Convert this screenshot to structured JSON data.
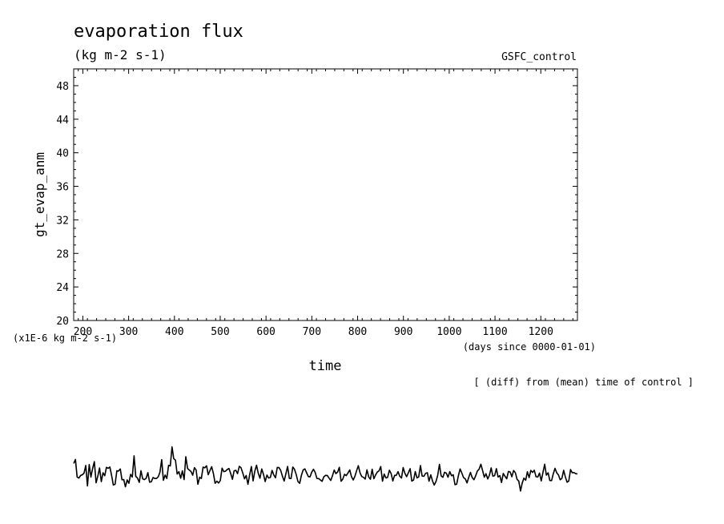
{
  "chart_data": {
    "type": "line",
    "title": "evaporation flux",
    "units": "(kg m-2 s-1)",
    "case_label": "GSFC_control",
    "ylabel": "gt_evap_anm",
    "yscale_note": "(x1E-6 kg m-2 s-1)",
    "xlabel": "time",
    "xunits": "(days since 0000-01-01)",
    "diff_note": "[ (diff) from (mean) time of control ]",
    "xlim": [
      180,
      1280
    ],
    "ylim": [
      20,
      50
    ],
    "xticks": [
      200,
      300,
      400,
      500,
      600,
      700,
      800,
      900,
      1000,
      1100,
      1200
    ],
    "yticks": [
      20,
      24,
      28,
      32,
      36,
      40,
      44,
      48
    ],
    "grid": false,
    "series": [
      {
        "color": "#000000",
        "x_start": 180,
        "x_end": 1280,
        "values": [
          2.96,
          3.42,
          1.34,
          1.21,
          1.51,
          1.61,
          1.79,
          2.72,
          0.27,
          2.82,
          1.33,
          2.38,
          3.17,
          0.64,
          1.47,
          2.41,
          0.79,
          1.84,
          1.49,
          2.49,
          2.37,
          2.53,
          1.49,
          0.39,
          0.47,
          2.08,
          2.05,
          2.3,
          1.01,
          1.03,
          0.17,
          0.99,
          0.59,
          1.66,
          1.33,
          3.86,
          1.42,
          1.21,
          0.69,
          2.08,
          1.11,
          1.03,
          1.19,
          1.86,
          0.72,
          0.76,
          1.28,
          1.16,
          1.16,
          1.36,
          1.9,
          3.4,
          0.94,
          1.57,
          1.16,
          2.73,
          2.66,
          4.92,
          3.53,
          3.35,
          1.68,
          1.97,
          1.2,
          2.07,
          1.03,
          3.76,
          2.35,
          2.17,
          2.0,
          1.55,
          2.45,
          2.16,
          0.47,
          1.31,
          1.16,
          2.52,
          2.43,
          2.68,
          1.61,
          2.11,
          2.56,
          1.73,
          0.59,
          0.84,
          0.61,
          0.92,
          2.39,
          1.98,
          2.03,
          2.23,
          2.35,
          1.76,
          1.06,
          2.08,
          2.13,
          1.73,
          2.61,
          2.45,
          1.83,
          1.12,
          1.52,
          0.46,
          1.59,
          2.58,
          0.87,
          2.05,
          2.74,
          1.77,
          1.19,
          2.3,
          1.65,
          0.79,
          1.57,
          1.22,
          1.28,
          2.12,
          1.58,
          1.25,
          2.48,
          2.46,
          2.11,
          1.45,
          0.85,
          1.74,
          2.59,
          1.17,
          1.16,
          2.53,
          2.26,
          1.62,
          0.81,
          0.59,
          1.52,
          2.17,
          2.31,
          1.85,
          1.39,
          1.35,
          1.92,
          2.26,
          1.87,
          1.16,
          1.15,
          0.99,
          0.82,
          1.36,
          1.53,
          1.52,
          1.21,
          0.93,
          1.48,
          2.16,
          1.74,
          1.93,
          2.49,
          0.83,
          1.08,
          1.66,
          1.5,
          1.82,
          2.18,
          1.4,
          0.99,
          1.41,
          2.1,
          2.69,
          1.82,
          1.4,
          1.29,
          1.09,
          2.19,
          1.34,
          1.06,
          2.26,
          1.13,
          1.59,
          1.92,
          2.08,
          2.58,
          0.83,
          1.68,
          1.22,
          1.3,
          2.14,
          1.74,
          0.86,
          1.53,
          1.53,
          1.97,
          1.44,
          1.22,
          2.46,
          1.77,
          1.38,
          1.84,
          2.33,
          0.84,
          0.98,
          1.98,
          1.23,
          1.35,
          2.71,
          1.45,
          1.42,
          1.78,
          1.85,
          0.83,
          1.6,
          0.85,
          0.38,
          0.81,
          1.52,
          2.85,
          1.47,
          1.3,
          1.9,
          1.79,
          1.3,
          1.98,
          1.48,
          1.61,
          0.42,
          0.47,
          1.51,
          2.3,
          1.8,
          1.27,
          1.11,
          0.63,
          1.29,
          1.89,
          1.27,
          1.01,
          1.48,
          2.06,
          2.27,
          2.86,
          2.13,
          1.31,
          1.73,
          1.1,
          1.55,
          2.42,
          1.43,
          1.5,
          2.33,
          1.33,
          1.5,
          0.68,
          1.76,
          1.44,
          1.12,
          2.0,
          1.93,
          1.37,
          2.11,
          1.84,
          1.06,
          0.83,
          -0.33,
          0.63,
          1.21,
          0.95,
          1.96,
          1.26,
          2.12,
          1.89,
          2.14,
          1.37,
          1.33,
          1.81,
          0.87,
          1.87,
          2.86,
          1.56,
          1.84,
          0.92,
          0.91,
          1.7,
          2.37,
          1.83,
          1.58,
          1.01,
          1.18,
          2.14,
          1.35,
          0.71,
          0.87,
          2.22,
          1.85,
          1.87,
          1.73,
          1.71
        ]
      }
    ]
  }
}
